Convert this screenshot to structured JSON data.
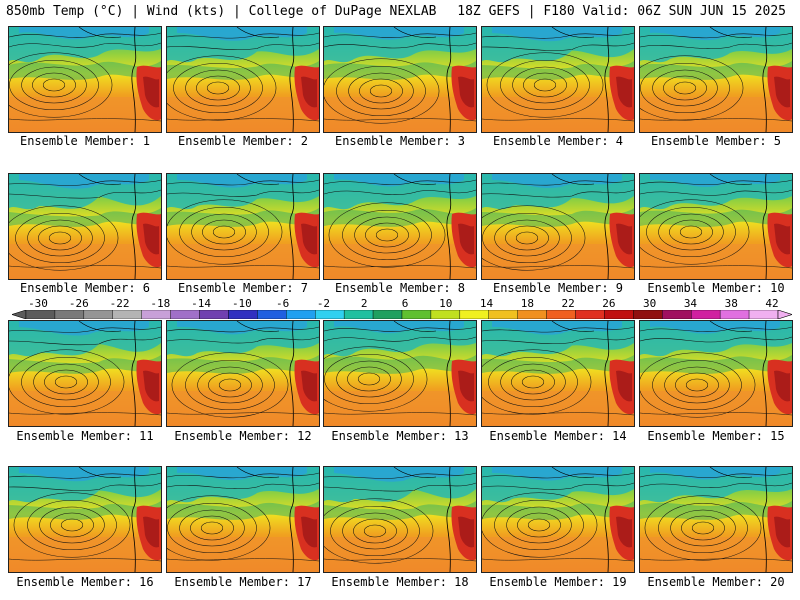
{
  "header": {
    "left": "850mb Temp (°C) | Wind (kts) | College of DuPage NEXLAB",
    "right": "18Z GEFS | F180 Valid: 06Z SUN JUN 15 2025"
  },
  "panels": [
    {
      "label": "Ensemble Member: 1"
    },
    {
      "label": "Ensemble Member: 2"
    },
    {
      "label": "Ensemble Member: 3"
    },
    {
      "label": "Ensemble Member: 4"
    },
    {
      "label": "Ensemble Member: 5"
    },
    {
      "label": "Ensemble Member: 6"
    },
    {
      "label": "Ensemble Member: 7"
    },
    {
      "label": "Ensemble Member: 8"
    },
    {
      "label": "Ensemble Member: 9"
    },
    {
      "label": "Ensemble Member: 10"
    },
    {
      "label": "Ensemble Member: 11"
    },
    {
      "label": "Ensemble Member: 12"
    },
    {
      "label": "Ensemble Member: 13"
    },
    {
      "label": "Ensemble Member: 14"
    },
    {
      "label": "Ensemble Member: 15"
    },
    {
      "label": "Ensemble Member: 16"
    },
    {
      "label": "Ensemble Member: 17"
    },
    {
      "label": "Ensemble Member: 18"
    },
    {
      "label": "Ensemble Member: 19"
    },
    {
      "label": "Ensemble Member: 20"
    }
  ],
  "colorbar": {
    "ticks": [
      "-30",
      "-26",
      "-22",
      "-18",
      "-14",
      "-10",
      "-6",
      "-2",
      "2",
      "6",
      "10",
      "14",
      "18",
      "22",
      "26",
      "30",
      "34",
      "38",
      "42"
    ],
    "colors": [
      "#5c5c5c",
      "#7a7a7a",
      "#959595",
      "#b4b4b4",
      "#c8a0d8",
      "#a070c8",
      "#7040b0",
      "#3030c0",
      "#2060e0",
      "#20a0f0",
      "#30d0f0",
      "#20c0a0",
      "#20a060",
      "#60c030",
      "#c0e020",
      "#f0f020",
      "#f0c020",
      "#f09020",
      "#f06020",
      "#e03020",
      "#c01010",
      "#901010",
      "#a01060",
      "#d020a0",
      "#e070e0",
      "#f0b0f0"
    ]
  }
}
